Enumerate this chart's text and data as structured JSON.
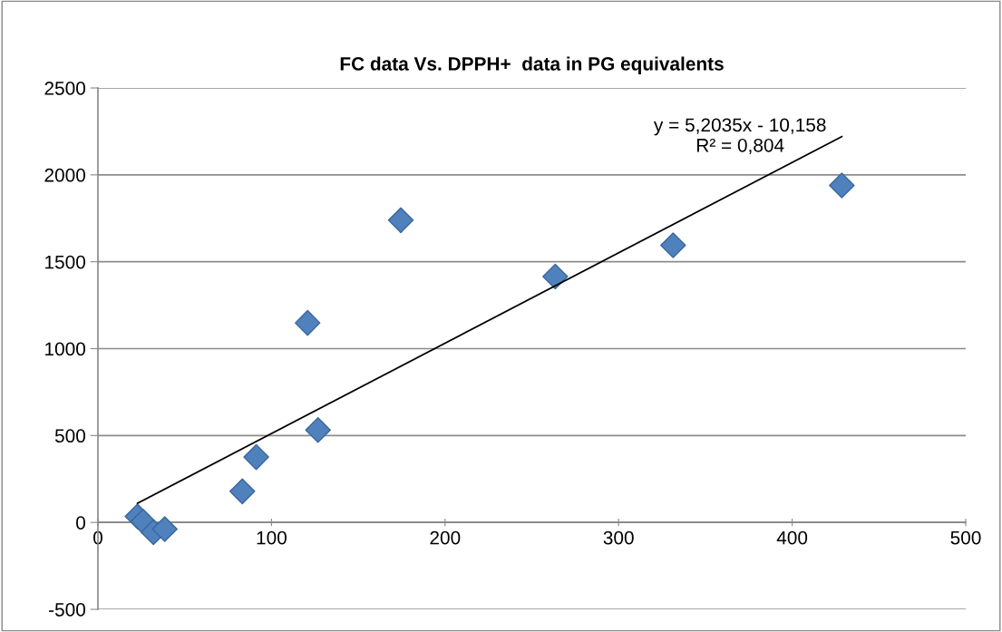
{
  "chart_data": {
    "type": "scatter",
    "title": "FC data Vs. DPPH+  data in PG equivalents",
    "xlim": [
      0,
      500
    ],
    "xticks": [
      0,
      100,
      200,
      300,
      400,
      500
    ],
    "ylim": [
      -500,
      2500
    ],
    "yticks": [
      -500,
      0,
      500,
      1000,
      1500,
      2000,
      2500
    ],
    "grid": "y",
    "legend": false,
    "series": [
      {
        "marker": "diamond",
        "color": "#4f81bd",
        "x": [
          22.8,
          26,
          32,
          38.5,
          83.2,
          91.2,
          120.8,
          126.8,
          174.5,
          263.5,
          331.4,
          428.6
        ],
        "values": [
          35,
          5,
          -56,
          -38,
          179,
          376,
          1148,
          532,
          1739,
          1415,
          1595,
          1939
        ]
      },
      {
        "type": "line",
        "color": "#000000",
        "x": [
          22.8,
          428.6
        ],
        "values": [
          110,
          2220
        ],
        "marker": "none"
      }
    ],
    "annotations": [
      "y = 5,2035x - 10,158\nR² = 0,804"
    ]
  }
}
